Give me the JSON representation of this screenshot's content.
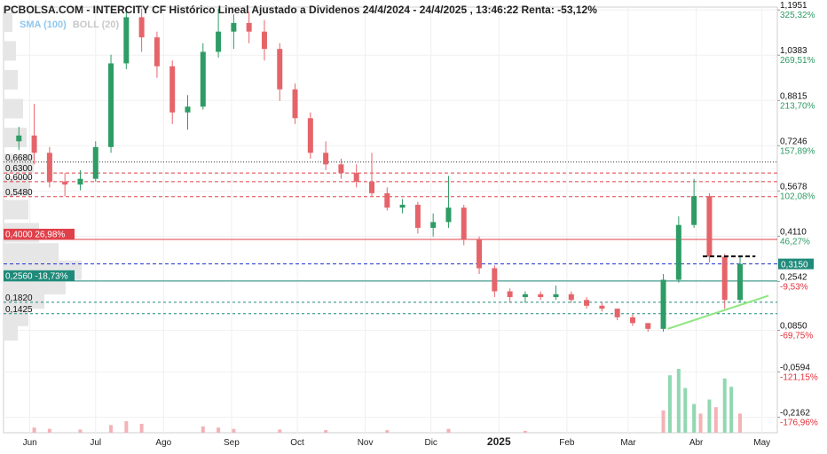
{
  "header": {
    "title": "PCBOLSA.COM - INTERCITY CF Histórico Lineal Ajustado a Dividenos 24/4/2024 - 24/4/2025 , 13:46:22 Renta: -53,12%"
  },
  "indicators": {
    "sma": "SMA (100)",
    "boll": "BOLL (20)"
  },
  "colors": {
    "up": "#2e9c65",
    "down": "#e5646a",
    "up_volume": "#90d8b2",
    "down_volume": "#f3b2b6",
    "red_line": "#e0404a",
    "teal_line": "#1f8a7a",
    "blue_dash": "#2233cc",
    "trend": "#8ee67e",
    "volume_profile": "#e6e6e6"
  },
  "chart_data": {
    "type": "candlestick",
    "title": "PCBOLSA.COM - INTERCITY CF Histórico Lineal Ajustado a Dividenos 24/4/2024 - 24/4/2025 , 13:46:22 Renta: -53,12%",
    "x_start": "2024-05-20",
    "x_end": "2025-05-08",
    "x_ticks": [
      {
        "label": "Jun",
        "date": "2024-06-01"
      },
      {
        "label": "Jul",
        "date": "2024-07-01"
      },
      {
        "label": "Ago",
        "date": "2024-08-01"
      },
      {
        "label": "Sep",
        "date": "2024-09-01"
      },
      {
        "label": "Oct",
        "date": "2024-10-01"
      },
      {
        "label": "Nov",
        "date": "2024-11-01"
      },
      {
        "label": "Dic",
        "date": "2024-12-01"
      },
      {
        "label": "2025",
        "date": "2025-01-01",
        "bold": true
      },
      {
        "label": "Feb",
        "date": "2025-02-01"
      },
      {
        "label": "Mar",
        "date": "2025-03-01"
      },
      {
        "label": "Abr",
        "date": "2025-04-01"
      },
      {
        "label": "May",
        "date": "2025-05-01"
      }
    ],
    "ylim": [
      -0.27,
      1.205
    ],
    "y_ticks": [
      {
        "value": 1.1951,
        "price": "1,1951",
        "pct": "325,32%",
        "pct_color": "#2e9c65"
      },
      {
        "value": 1.0383,
        "price": "1,0383",
        "pct": "269,51%",
        "pct_color": "#2e9c65"
      },
      {
        "value": 0.8815,
        "price": "0,8815",
        "pct": "213,70%",
        "pct_color": "#2e9c65"
      },
      {
        "value": 0.7246,
        "price": "0,7246",
        "pct": "157,89%",
        "pct_color": "#2e9c65"
      },
      {
        "value": 0.5678,
        "price": "0,5678",
        "pct": "102,08%",
        "pct_color": "#2e9c65"
      },
      {
        "value": 0.411,
        "price": "0,4110",
        "pct": "46,27%",
        "pct_color": "#2e9c65"
      },
      {
        "value": 0.2542,
        "price": "0,2542",
        "pct": "-9,53%",
        "pct_color": "#e5303a"
      },
      {
        "value": 0.085,
        "price": "0,0850",
        "pct": "-69,75%",
        "pct_color": "#e5303a"
      },
      {
        "value": -0.0594,
        "price": "-0,0594",
        "pct": "-121,15%",
        "pct_color": "#e5303a"
      },
      {
        "value": -0.2162,
        "price": "-0,2162",
        "pct": "-176,96%",
        "pct_color": "#e5303a"
      }
    ],
    "current_price": {
      "value": 0.315,
      "label": "0,3150"
    },
    "levels": [
      {
        "value": 0.668,
        "label": "0,6680",
        "style": "dotted-dark"
      },
      {
        "value": 0.63,
        "label": "0,6300",
        "style": "dashed-red"
      },
      {
        "value": 0.6,
        "label": "0,6000",
        "style": "dashed-red"
      },
      {
        "value": 0.548,
        "label": "0,5480",
        "style": "dashed-red"
      },
      {
        "value": 0.4,
        "label": "0,4000",
        "pct": "26,98%",
        "style": "solid-red"
      },
      {
        "value": 0.315,
        "label": "",
        "style": "dashed-blue"
      },
      {
        "value": 0.256,
        "label": "0,2560",
        "pct": "-18,73%",
        "style": "solid-teal"
      },
      {
        "value": 0.182,
        "label": "0,1820",
        "style": "dashed-teal"
      },
      {
        "value": 0.1425,
        "label": "0,1425",
        "style": "dashed-teal"
      }
    ],
    "resistance_segment": {
      "x1": "2025-04-04",
      "x2": "2025-04-28",
      "y": 0.341
    },
    "trendline": {
      "x1": "2025-03-19",
      "y1": 0.09,
      "x2": "2025-05-04",
      "y2": 0.205
    },
    "series": [
      {
        "x": "2024-05-27",
        "o": 0.74,
        "h": 0.79,
        "l": 0.71,
        "c": 0.76
      },
      {
        "x": "2024-06-03",
        "o": 0.76,
        "h": 0.87,
        "l": 0.66,
        "c": 0.7
      },
      {
        "x": "2024-06-10",
        "o": 0.7,
        "h": 0.72,
        "l": 0.58,
        "c": 0.6
      },
      {
        "x": "2024-06-17",
        "o": 0.6,
        "h": 0.63,
        "l": 0.55,
        "c": 0.59
      },
      {
        "x": "2024-06-24",
        "o": 0.59,
        "h": 0.64,
        "l": 0.57,
        "c": 0.61
      },
      {
        "x": "2024-07-01",
        "o": 0.61,
        "h": 0.74,
        "l": 0.6,
        "c": 0.72
      },
      {
        "x": "2024-07-08",
        "o": 0.72,
        "h": 1.04,
        "l": 0.7,
        "c": 1.01
      },
      {
        "x": "2024-07-15",
        "o": 1.01,
        "h": 1.2,
        "l": 0.99,
        "c": 1.17
      },
      {
        "x": "2024-07-22",
        "o": 1.17,
        "h": 1.2,
        "l": 1.05,
        "c": 1.1
      },
      {
        "x": "2024-07-29",
        "o": 1.1,
        "h": 1.12,
        "l": 0.96,
        "c": 1.0
      },
      {
        "x": "2024-08-05",
        "o": 1.0,
        "h": 1.02,
        "l": 0.8,
        "c": 0.84
      },
      {
        "x": "2024-08-12",
        "o": 0.84,
        "h": 0.9,
        "l": 0.78,
        "c": 0.86
      },
      {
        "x": "2024-08-19",
        "o": 0.86,
        "h": 1.08,
        "l": 0.85,
        "c": 1.05
      },
      {
        "x": "2024-08-26",
        "o": 1.05,
        "h": 1.2,
        "l": 1.03,
        "c": 1.12
      },
      {
        "x": "2024-09-02",
        "o": 1.12,
        "h": 1.18,
        "l": 1.06,
        "c": 1.15
      },
      {
        "x": "2024-09-09",
        "o": 1.15,
        "h": 1.19,
        "l": 1.08,
        "c": 1.12
      },
      {
        "x": "2024-09-16",
        "o": 1.12,
        "h": 1.16,
        "l": 1.02,
        "c": 1.06
      },
      {
        "x": "2024-09-23",
        "o": 1.06,
        "h": 1.08,
        "l": 0.88,
        "c": 0.92
      },
      {
        "x": "2024-09-30",
        "o": 0.92,
        "h": 0.94,
        "l": 0.8,
        "c": 0.82
      },
      {
        "x": "2024-10-07",
        "o": 0.82,
        "h": 0.84,
        "l": 0.68,
        "c": 0.7
      },
      {
        "x": "2024-10-14",
        "o": 0.7,
        "h": 0.74,
        "l": 0.64,
        "c": 0.66
      },
      {
        "x": "2024-10-21",
        "o": 0.66,
        "h": 0.68,
        "l": 0.61,
        "c": 0.63
      },
      {
        "x": "2024-10-28",
        "o": 0.63,
        "h": 0.66,
        "l": 0.58,
        "c": 0.6
      },
      {
        "x": "2024-11-04",
        "o": 0.6,
        "h": 0.7,
        "l": 0.55,
        "c": 0.56
      },
      {
        "x": "2024-11-11",
        "o": 0.56,
        "h": 0.58,
        "l": 0.5,
        "c": 0.51
      },
      {
        "x": "2024-11-18",
        "o": 0.51,
        "h": 0.54,
        "l": 0.49,
        "c": 0.52
      },
      {
        "x": "2024-11-25",
        "o": 0.52,
        "h": 0.53,
        "l": 0.42,
        "c": 0.44
      },
      {
        "x": "2024-12-02",
        "o": 0.44,
        "h": 0.49,
        "l": 0.41,
        "c": 0.46
      },
      {
        "x": "2024-12-09",
        "o": 0.46,
        "h": 0.62,
        "l": 0.44,
        "c": 0.51
      },
      {
        "x": "2024-12-16",
        "o": 0.51,
        "h": 0.52,
        "l": 0.38,
        "c": 0.4
      },
      {
        "x": "2024-12-23",
        "o": 0.4,
        "h": 0.41,
        "l": 0.28,
        "c": 0.3
      },
      {
        "x": "2024-12-30",
        "o": 0.3,
        "h": 0.31,
        "l": 0.2,
        "c": 0.22
      },
      {
        "x": "2025-01-06",
        "o": 0.22,
        "h": 0.23,
        "l": 0.18,
        "c": 0.2
      },
      {
        "x": "2025-01-13",
        "o": 0.2,
        "h": 0.22,
        "l": 0.18,
        "c": 0.21
      },
      {
        "x": "2025-01-20",
        "o": 0.21,
        "h": 0.22,
        "l": 0.19,
        "c": 0.2
      },
      {
        "x": "2025-01-27",
        "o": 0.2,
        "h": 0.24,
        "l": 0.19,
        "c": 0.21
      },
      {
        "x": "2025-02-03",
        "o": 0.21,
        "h": 0.22,
        "l": 0.18,
        "c": 0.19
      },
      {
        "x": "2025-02-10",
        "o": 0.19,
        "h": 0.2,
        "l": 0.16,
        "c": 0.17
      },
      {
        "x": "2025-02-17",
        "o": 0.17,
        "h": 0.18,
        "l": 0.15,
        "c": 0.16
      },
      {
        "x": "2025-02-24",
        "o": 0.16,
        "h": 0.16,
        "l": 0.12,
        "c": 0.13
      },
      {
        "x": "2025-03-03",
        "o": 0.13,
        "h": 0.14,
        "l": 0.1,
        "c": 0.11
      },
      {
        "x": "2025-03-10",
        "o": 0.11,
        "h": 0.11,
        "l": 0.08,
        "c": 0.09
      },
      {
        "x": "2025-03-17",
        "o": 0.09,
        "h": 0.28,
        "l": 0.08,
        "c": 0.26
      },
      {
        "x": "2025-03-24",
        "o": 0.26,
        "h": 0.48,
        "l": 0.25,
        "c": 0.45
      },
      {
        "x": "2025-03-31",
        "o": 0.45,
        "h": 0.61,
        "l": 0.44,
        "c": 0.55
      },
      {
        "x": "2025-04-07",
        "o": 0.55,
        "h": 0.56,
        "l": 0.32,
        "c": 0.34
      },
      {
        "x": "2025-04-14",
        "o": 0.34,
        "h": 0.35,
        "l": 0.16,
        "c": 0.19
      },
      {
        "x": "2025-04-21",
        "o": 0.19,
        "h": 0.34,
        "l": 0.18,
        "c": 0.315
      }
    ],
    "volume": [
      {
        "x": "2024-06-03",
        "v": 8
      },
      {
        "x": "2024-06-10",
        "v": 6
      },
      {
        "x": "2024-06-24",
        "v": 5
      },
      {
        "x": "2024-07-08",
        "v": 12
      },
      {
        "x": "2024-07-15",
        "v": 18
      },
      {
        "x": "2024-07-22",
        "v": 14
      },
      {
        "x": "2024-08-19",
        "v": 10
      },
      {
        "x": "2024-08-26",
        "v": 8
      },
      {
        "x": "2024-09-02",
        "v": 6
      },
      {
        "x": "2024-09-23",
        "v": 5
      },
      {
        "x": "2024-10-14",
        "v": 4
      },
      {
        "x": "2024-11-11",
        "v": 4
      },
      {
        "x": "2024-12-09",
        "v": 6
      },
      {
        "x": "2025-01-13",
        "v": 3
      },
      {
        "x": "2025-03-17",
        "v": 35
      },
      {
        "x": "2025-03-20",
        "v": 90
      },
      {
        "x": "2025-03-24",
        "v": 100
      },
      {
        "x": "2025-03-27",
        "v": 70
      },
      {
        "x": "2025-03-31",
        "v": 45
      },
      {
        "x": "2025-04-03",
        "v": 30
      },
      {
        "x": "2025-04-07",
        "v": 52
      },
      {
        "x": "2025-04-10",
        "v": 40
      },
      {
        "x": "2025-04-14",
        "v": 85
      },
      {
        "x": "2025-04-17",
        "v": 72
      },
      {
        "x": "2025-04-21",
        "v": 30
      }
    ],
    "volume_profile": [
      {
        "price": 1.15,
        "w": 10
      },
      {
        "price": 1.05,
        "w": 14
      },
      {
        "price": 0.95,
        "w": 16
      },
      {
        "price": 0.85,
        "w": 22
      },
      {
        "price": 0.75,
        "w": 26
      },
      {
        "price": 0.66,
        "w": 34
      },
      {
        "price": 0.58,
        "w": 30
      },
      {
        "price": 0.5,
        "w": 28
      },
      {
        "price": 0.42,
        "w": 40
      },
      {
        "price": 0.35,
        "w": 62
      },
      {
        "price": 0.29,
        "w": 88
      },
      {
        "price": 0.24,
        "w": 70
      },
      {
        "price": 0.19,
        "w": 46
      },
      {
        "price": 0.13,
        "w": 28
      },
      {
        "price": 0.08,
        "w": 16
      }
    ]
  }
}
